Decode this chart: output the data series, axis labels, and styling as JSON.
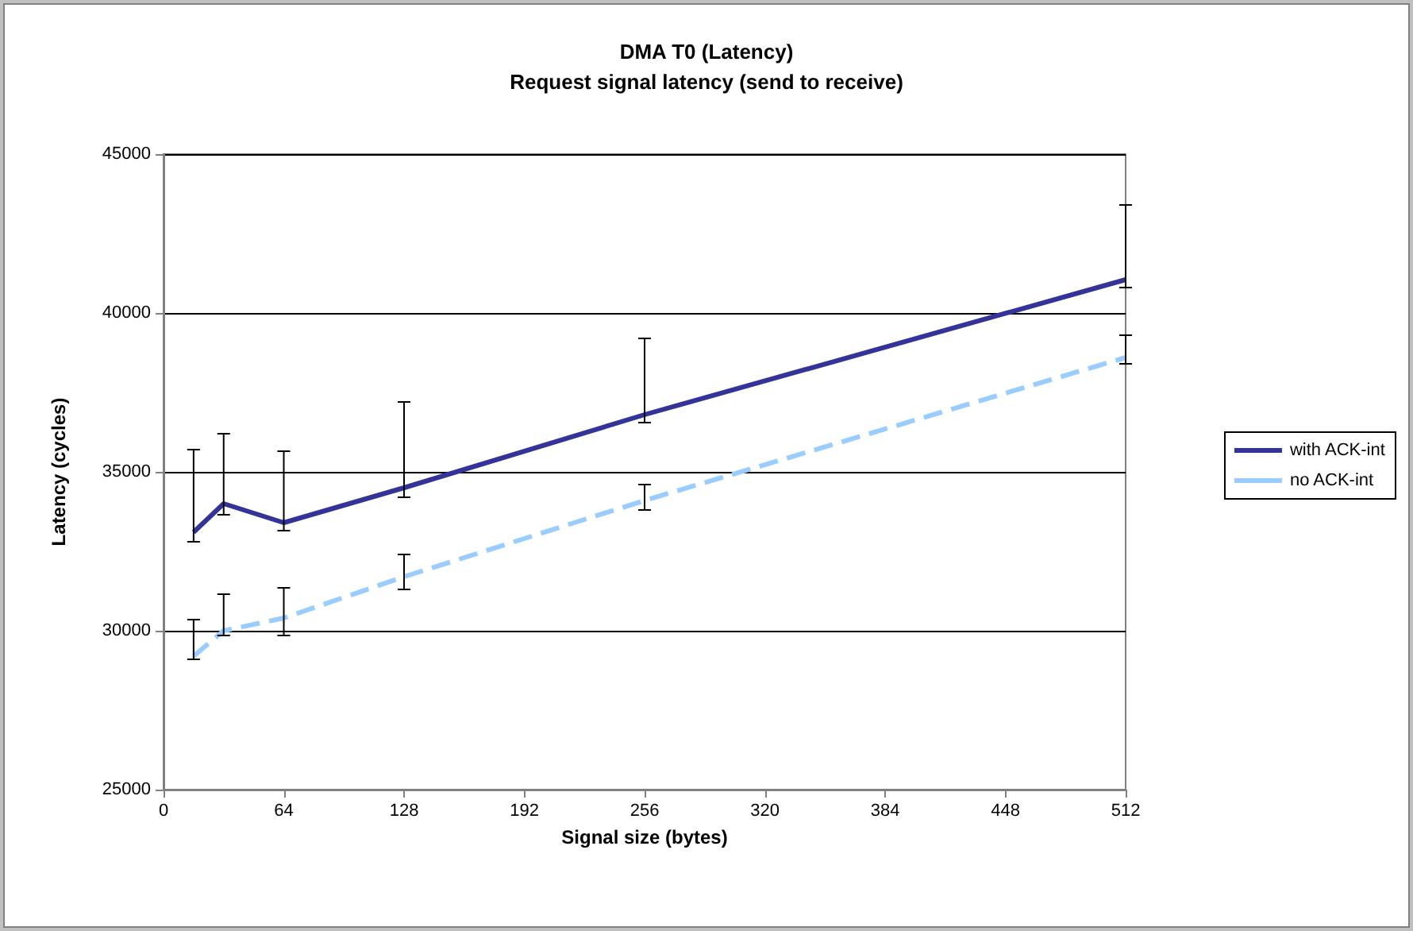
{
  "chart_data": {
    "type": "line",
    "title": "DMA T0 (Latency)",
    "subtitle": "Request signal latency (send to receive)",
    "xlabel": "Signal size (bytes)",
    "ylabel": "Latency (cycles)",
    "x": [
      16,
      32,
      64,
      128,
      256,
      512
    ],
    "series": [
      {
        "name": "with ACK-int",
        "color": "#333399",
        "line_style": "solid",
        "values": [
          33100,
          34000,
          33400,
          34500,
          36800,
          41050
        ],
        "errors": [
          [
            32800,
            35700
          ],
          [
            33650,
            36200
          ],
          [
            33150,
            35650
          ],
          [
            34200,
            37200
          ],
          [
            36550,
            39200
          ],
          [
            40800,
            43400
          ]
        ]
      },
      {
        "name": "no ACK-int",
        "color": "#99ccff",
        "line_style": "dashed",
        "values": [
          29200,
          30000,
          30400,
          31700,
          34100,
          38600
        ],
        "errors": [
          [
            29100,
            30350
          ],
          [
            29850,
            31150
          ],
          [
            29850,
            31350
          ],
          [
            31300,
            32400
          ],
          [
            33800,
            34600
          ],
          [
            38400,
            39300
          ]
        ]
      }
    ],
    "xlim": [
      0,
      512
    ],
    "xticks": [
      0,
      64,
      128,
      192,
      256,
      320,
      384,
      448,
      512
    ],
    "ylim": [
      25000,
      45000
    ],
    "yticks": [
      25000,
      30000,
      35000,
      40000,
      45000
    ],
    "grid": "y",
    "legend": "right",
    "marker": "none"
  }
}
